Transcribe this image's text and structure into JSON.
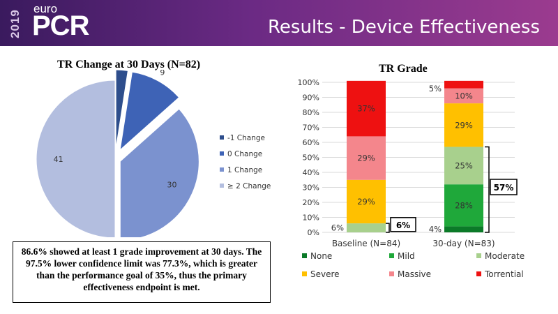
{
  "header": {
    "year": "2019",
    "brand_small": "euro",
    "brand_large": "PCR",
    "title": "Results - Device Effectiveness"
  },
  "summary": "86.6% showed at least 1 grade improvement at 30 days. The 97.5% lower confidence limit was 77.3%, which is greater than the performance goal of 35%, thus the primary effectiveness endpoint is met.",
  "chart_data": [
    {
      "type": "pie",
      "title": "TR Change at 30 Days (N=82)",
      "categories": [
        "-1 Change",
        "0 Change",
        "1 Change",
        "≥ 2 Change"
      ],
      "values": [
        2,
        9,
        30,
        41
      ],
      "colors": [
        "#2e4e8c",
        "#3e63b6",
        "#7b92cf",
        "#b3bedf"
      ],
      "exploded": true,
      "legend_position": "right"
    },
    {
      "type": "bar",
      "stacked": true,
      "title": "TR Grade",
      "categories": [
        "Baseline (N=84)",
        "30-day (N=83)"
      ],
      "series": [
        {
          "name": "None",
          "values": [
            0,
            4
          ],
          "color": "#0b7a28"
        },
        {
          "name": "Mild",
          "values": [
            0,
            28
          ],
          "color": "#1fa83a"
        },
        {
          "name": "Moderate",
          "values": [
            6,
            25
          ],
          "color": "#a8d08d"
        },
        {
          "name": "Severe",
          "values": [
            29,
            29
          ],
          "color": "#ffc000"
        },
        {
          "name": "Massive",
          "values": [
            29,
            10
          ],
          "color": "#f4868c"
        },
        {
          "name": "Torrential",
          "values": [
            37,
            5
          ],
          "color": "#ee1111"
        }
      ],
      "data_labels": [
        {
          "text": "6%",
          "category": 0
        },
        {
          "text": "29%",
          "category": 0
        },
        {
          "text": "29%",
          "category": 0
        },
        {
          "text": "37%",
          "category": 0
        },
        {
          "text": "4%",
          "category": 1
        },
        {
          "text": "28%",
          "category": 1
        },
        {
          "text": "25%",
          "category": 1
        },
        {
          "text": "29%",
          "category": 1
        },
        {
          "text": "10%",
          "category": 1
        },
        {
          "text": "5%",
          "category": 1
        }
      ],
      "y_ticks": [
        "0%",
        "10%",
        "20%",
        "30%",
        "40%",
        "50%",
        "60%",
        "70%",
        "80%",
        "90%",
        "100%"
      ],
      "ylim": [
        0,
        100
      ],
      "callouts": [
        "6%",
        "57%"
      ],
      "grid": true,
      "legend_position": "bottom"
    }
  ]
}
